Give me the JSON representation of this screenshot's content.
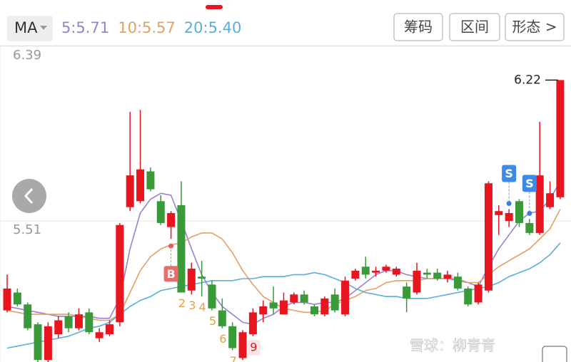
{
  "chart_data": {
    "type": "candlestick",
    "indicator": "MA",
    "buttons": [
      "筹码",
      "区间",
      "形态 >"
    ],
    "ylim": [
      4.8,
      6.39
    ],
    "yticks": [
      6.39,
      5.51
    ],
    "grid": true,
    "up_color": "#e8141e",
    "down_color": "#3a9a3a",
    "open": [
      5.06,
      5.15,
      5.09,
      4.99,
      4.81,
      4.94,
      5.03,
      4.97,
      5.05,
      4.92,
      4.94,
      5.0,
      5.58,
      5.61,
      5.76,
      5.61,
      5.48,
      5.59,
      5.16,
      5.23,
      5.19,
      5.06,
      4.98,
      4.82,
      4.94,
      5.04,
      5.1,
      5.04,
      5.1,
      5.14,
      5.08,
      5.04,
      5.14,
      5.04,
      5.22,
      5.28,
      5.25,
      5.26,
      5.24,
      5.18,
      5.15,
      5.25,
      5.25,
      5.22,
      5.23,
      5.17,
      5.1,
      5.16,
      5.54,
      5.51,
      5.61,
      5.5,
      5.45,
      5.58,
      5.63
    ],
    "high": [
      5.24,
      5.17,
      5.1,
      5.0,
      5.0,
      5.03,
      5.05,
      5.07,
      5.07,
      4.97,
      5.01,
      5.5,
      6.06,
      6.07,
      5.78,
      5.64,
      5.56,
      5.71,
      5.3,
      5.31,
      5.21,
      5.12,
      5.0,
      4.96,
      5.07,
      5.11,
      5.18,
      5.15,
      5.15,
      5.16,
      5.09,
      5.13,
      5.17,
      5.23,
      5.27,
      5.33,
      5.28,
      5.29,
      5.28,
      5.2,
      5.3,
      5.27,
      5.27,
      5.26,
      5.25,
      5.18,
      5.2,
      5.71,
      5.59,
      5.57,
      5.62,
      5.52,
      6.01,
      5.71,
      6.22
    ],
    "low": [
      5.05,
      5.08,
      4.96,
      4.8,
      4.8,
      4.92,
      4.95,
      4.96,
      4.94,
      4.9,
      4.93,
      4.98,
      5.56,
      5.6,
      5.66,
      5.49,
      5.42,
      5.15,
      5.14,
      5.13,
      5.06,
      4.97,
      4.86,
      4.81,
      4.93,
      5.0,
      5.04,
      5.04,
      5.09,
      5.09,
      5.03,
      5.03,
      5.05,
      5.03,
      5.21,
      5.22,
      5.23,
      5.25,
      5.23,
      5.05,
      5.14,
      5.22,
      5.21,
      5.2,
      5.16,
      5.08,
      5.09,
      5.15,
      5.44,
      5.48,
      5.48,
      5.44,
      5.44,
      5.57,
      5.62
    ],
    "close": [
      5.17,
      5.09,
      4.97,
      4.81,
      4.98,
      5.01,
      4.97,
      5.04,
      4.95,
      4.95,
      4.99,
      5.49,
      5.74,
      5.77,
      5.67,
      5.5,
      5.55,
      5.15,
      5.27,
      5.22,
      5.07,
      4.98,
      4.87,
      4.95,
      5.05,
      5.08,
      5.07,
      5.11,
      5.14,
      5.1,
      5.04,
      5.12,
      5.06,
      5.21,
      5.26,
      5.24,
      5.26,
      5.28,
      5.27,
      5.12,
      5.26,
      5.24,
      5.22,
      5.24,
      5.17,
      5.09,
      5.19,
      5.7,
      5.56,
      5.55,
      5.5,
      5.45,
      5.74,
      5.65,
      6.22
    ],
    "max_label": "6.22",
    "series": [
      {
        "name": "5",
        "label": "5:5.71",
        "color": "#9a80d2",
        "values": [
          5.08,
          5.07,
          5.06,
          5.05,
          5.04,
          5.03,
          5.03,
          5.03,
          5.03,
          5.02,
          5.02,
          5.12,
          5.37,
          5.55,
          5.62,
          5.65,
          5.64,
          5.51,
          5.37,
          5.24,
          5.15,
          5.08,
          5.04,
          5.0,
          4.99,
          5.02,
          5.04,
          5.08,
          5.1,
          5.1,
          5.09,
          5.1,
          5.1,
          5.12,
          5.16,
          5.2,
          5.24,
          5.26,
          5.26,
          5.24,
          5.23,
          5.22,
          5.22,
          5.22,
          5.21,
          5.2,
          5.18,
          5.28,
          5.37,
          5.44,
          5.51,
          5.55,
          5.56,
          5.62,
          5.71
        ]
      },
      {
        "name": "10",
        "label": "10:5.57",
        "color": "#e3a063",
        "values": [
          5.06,
          5.05,
          5.04,
          5.04,
          5.04,
          5.04,
          5.04,
          5.03,
          5.02,
          5.01,
          5.01,
          5.04,
          5.15,
          5.26,
          5.33,
          5.37,
          5.39,
          5.4,
          5.43,
          5.45,
          5.45,
          5.42,
          5.35,
          5.26,
          5.19,
          5.13,
          5.1,
          5.07,
          5.06,
          5.05,
          5.05,
          5.06,
          5.09,
          5.11,
          5.13,
          5.16,
          5.17,
          5.2,
          5.21,
          5.21,
          5.21,
          5.22,
          5.22,
          5.22,
          5.22,
          5.2,
          5.2,
          5.24,
          5.28,
          5.31,
          5.34,
          5.37,
          5.42,
          5.47,
          5.57
        ]
      },
      {
        "name": "20",
        "label": "20:5.40",
        "color": "#5aaed8",
        "values": [
          4.87,
          4.88,
          4.89,
          4.9,
          4.91,
          4.92,
          4.93,
          4.95,
          4.97,
          4.98,
          5.0,
          5.04,
          5.08,
          5.11,
          5.13,
          5.16,
          5.17,
          5.18,
          5.19,
          5.2,
          5.21,
          5.21,
          5.21,
          5.22,
          5.22,
          5.23,
          5.23,
          5.23,
          5.24,
          5.24,
          5.25,
          5.24,
          5.22,
          5.2,
          5.17,
          5.15,
          5.14,
          5.13,
          5.13,
          5.12,
          5.12,
          5.12,
          5.13,
          5.14,
          5.15,
          5.16,
          5.17,
          5.18,
          5.2,
          5.23,
          5.25,
          5.27,
          5.3,
          5.34,
          5.4
        ]
      }
    ],
    "signals": [
      {
        "text": "B",
        "at": 16
      },
      {
        "text": "S",
        "at": 49
      },
      {
        "text": "S",
        "at": 51
      }
    ],
    "counts": [
      {
        "text": "2",
        "at": 17
      },
      {
        "text": "3",
        "at": 18
      },
      {
        "text": "4",
        "at": 19
      },
      {
        "text": "5",
        "at": 20
      },
      {
        "text": "6",
        "at": 21
      },
      {
        "text": "7",
        "at": 22
      },
      {
        "text": "9",
        "at": 24
      }
    ],
    "watermark": "雪球：柳青青"
  }
}
